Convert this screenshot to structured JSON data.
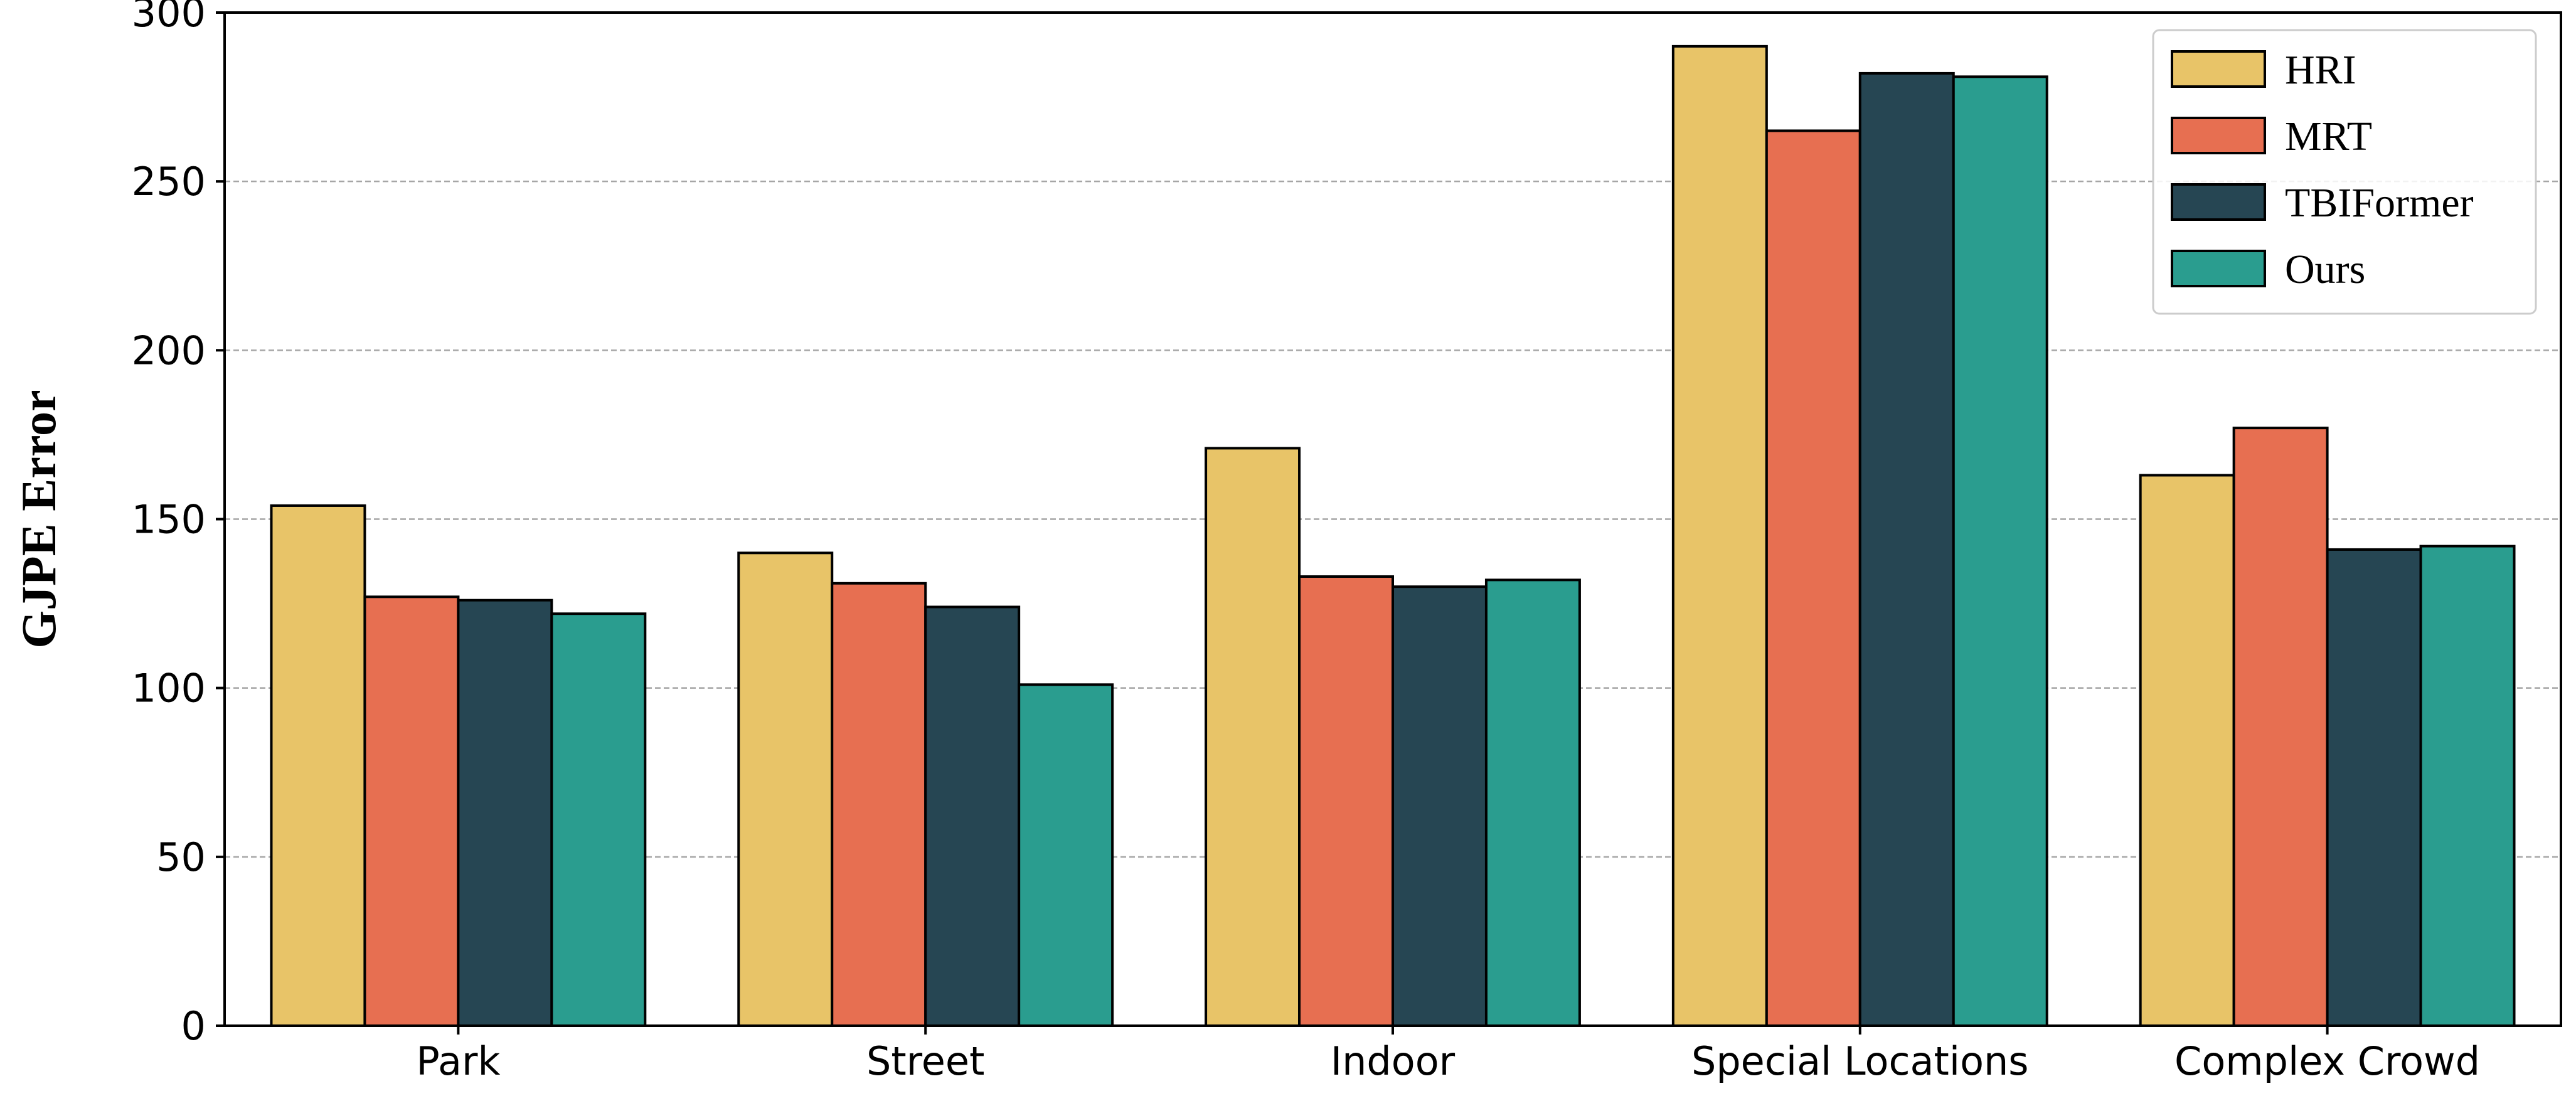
{
  "chart_data": {
    "type": "bar",
    "title": "",
    "xlabel": "",
    "ylabel": "GJPE Error",
    "categories": [
      "Park",
      "Street",
      "Indoor",
      "Special Locations",
      "Complex Crowd"
    ],
    "ylim": [
      0,
      300
    ],
    "yticks": [
      0,
      50,
      100,
      150,
      200,
      250,
      300
    ],
    "grid": true,
    "legend_position": "top-right",
    "series": [
      {
        "name": "HRI",
        "color": "#E8C468",
        "values": [
          154,
          140,
          171,
          290,
          163
        ]
      },
      {
        "name": "MRT",
        "color": "#E76F51",
        "values": [
          127,
          131,
          133,
          265,
          177
        ]
      },
      {
        "name": "TBIFormer",
        "color": "#264653",
        "values": [
          126,
          124,
          130,
          282,
          141
        ]
      },
      {
        "name": "Ours",
        "color": "#2A9D8F",
        "values": [
          122,
          101,
          132,
          281,
          142
        ]
      }
    ]
  }
}
